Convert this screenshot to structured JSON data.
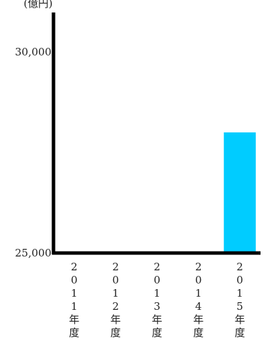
{
  "chart_data": {
    "type": "bar",
    "unit_label": "(億円)",
    "categories": [
      "2011年度",
      "2012年度",
      "2013年度",
      "2014年度",
      "2015年度"
    ],
    "values": [
      null,
      null,
      null,
      null,
      28000
    ],
    "ylim": [
      25000,
      30000
    ],
    "yticks": [
      {
        "value": 25000,
        "label": "25,000"
      },
      {
        "value": 30000,
        "label": "30,000"
      }
    ],
    "colors": {
      "bar": "#00ccff",
      "axis": "#000000"
    },
    "grid": false,
    "title": "",
    "xlabel": "",
    "ylabel": ""
  }
}
